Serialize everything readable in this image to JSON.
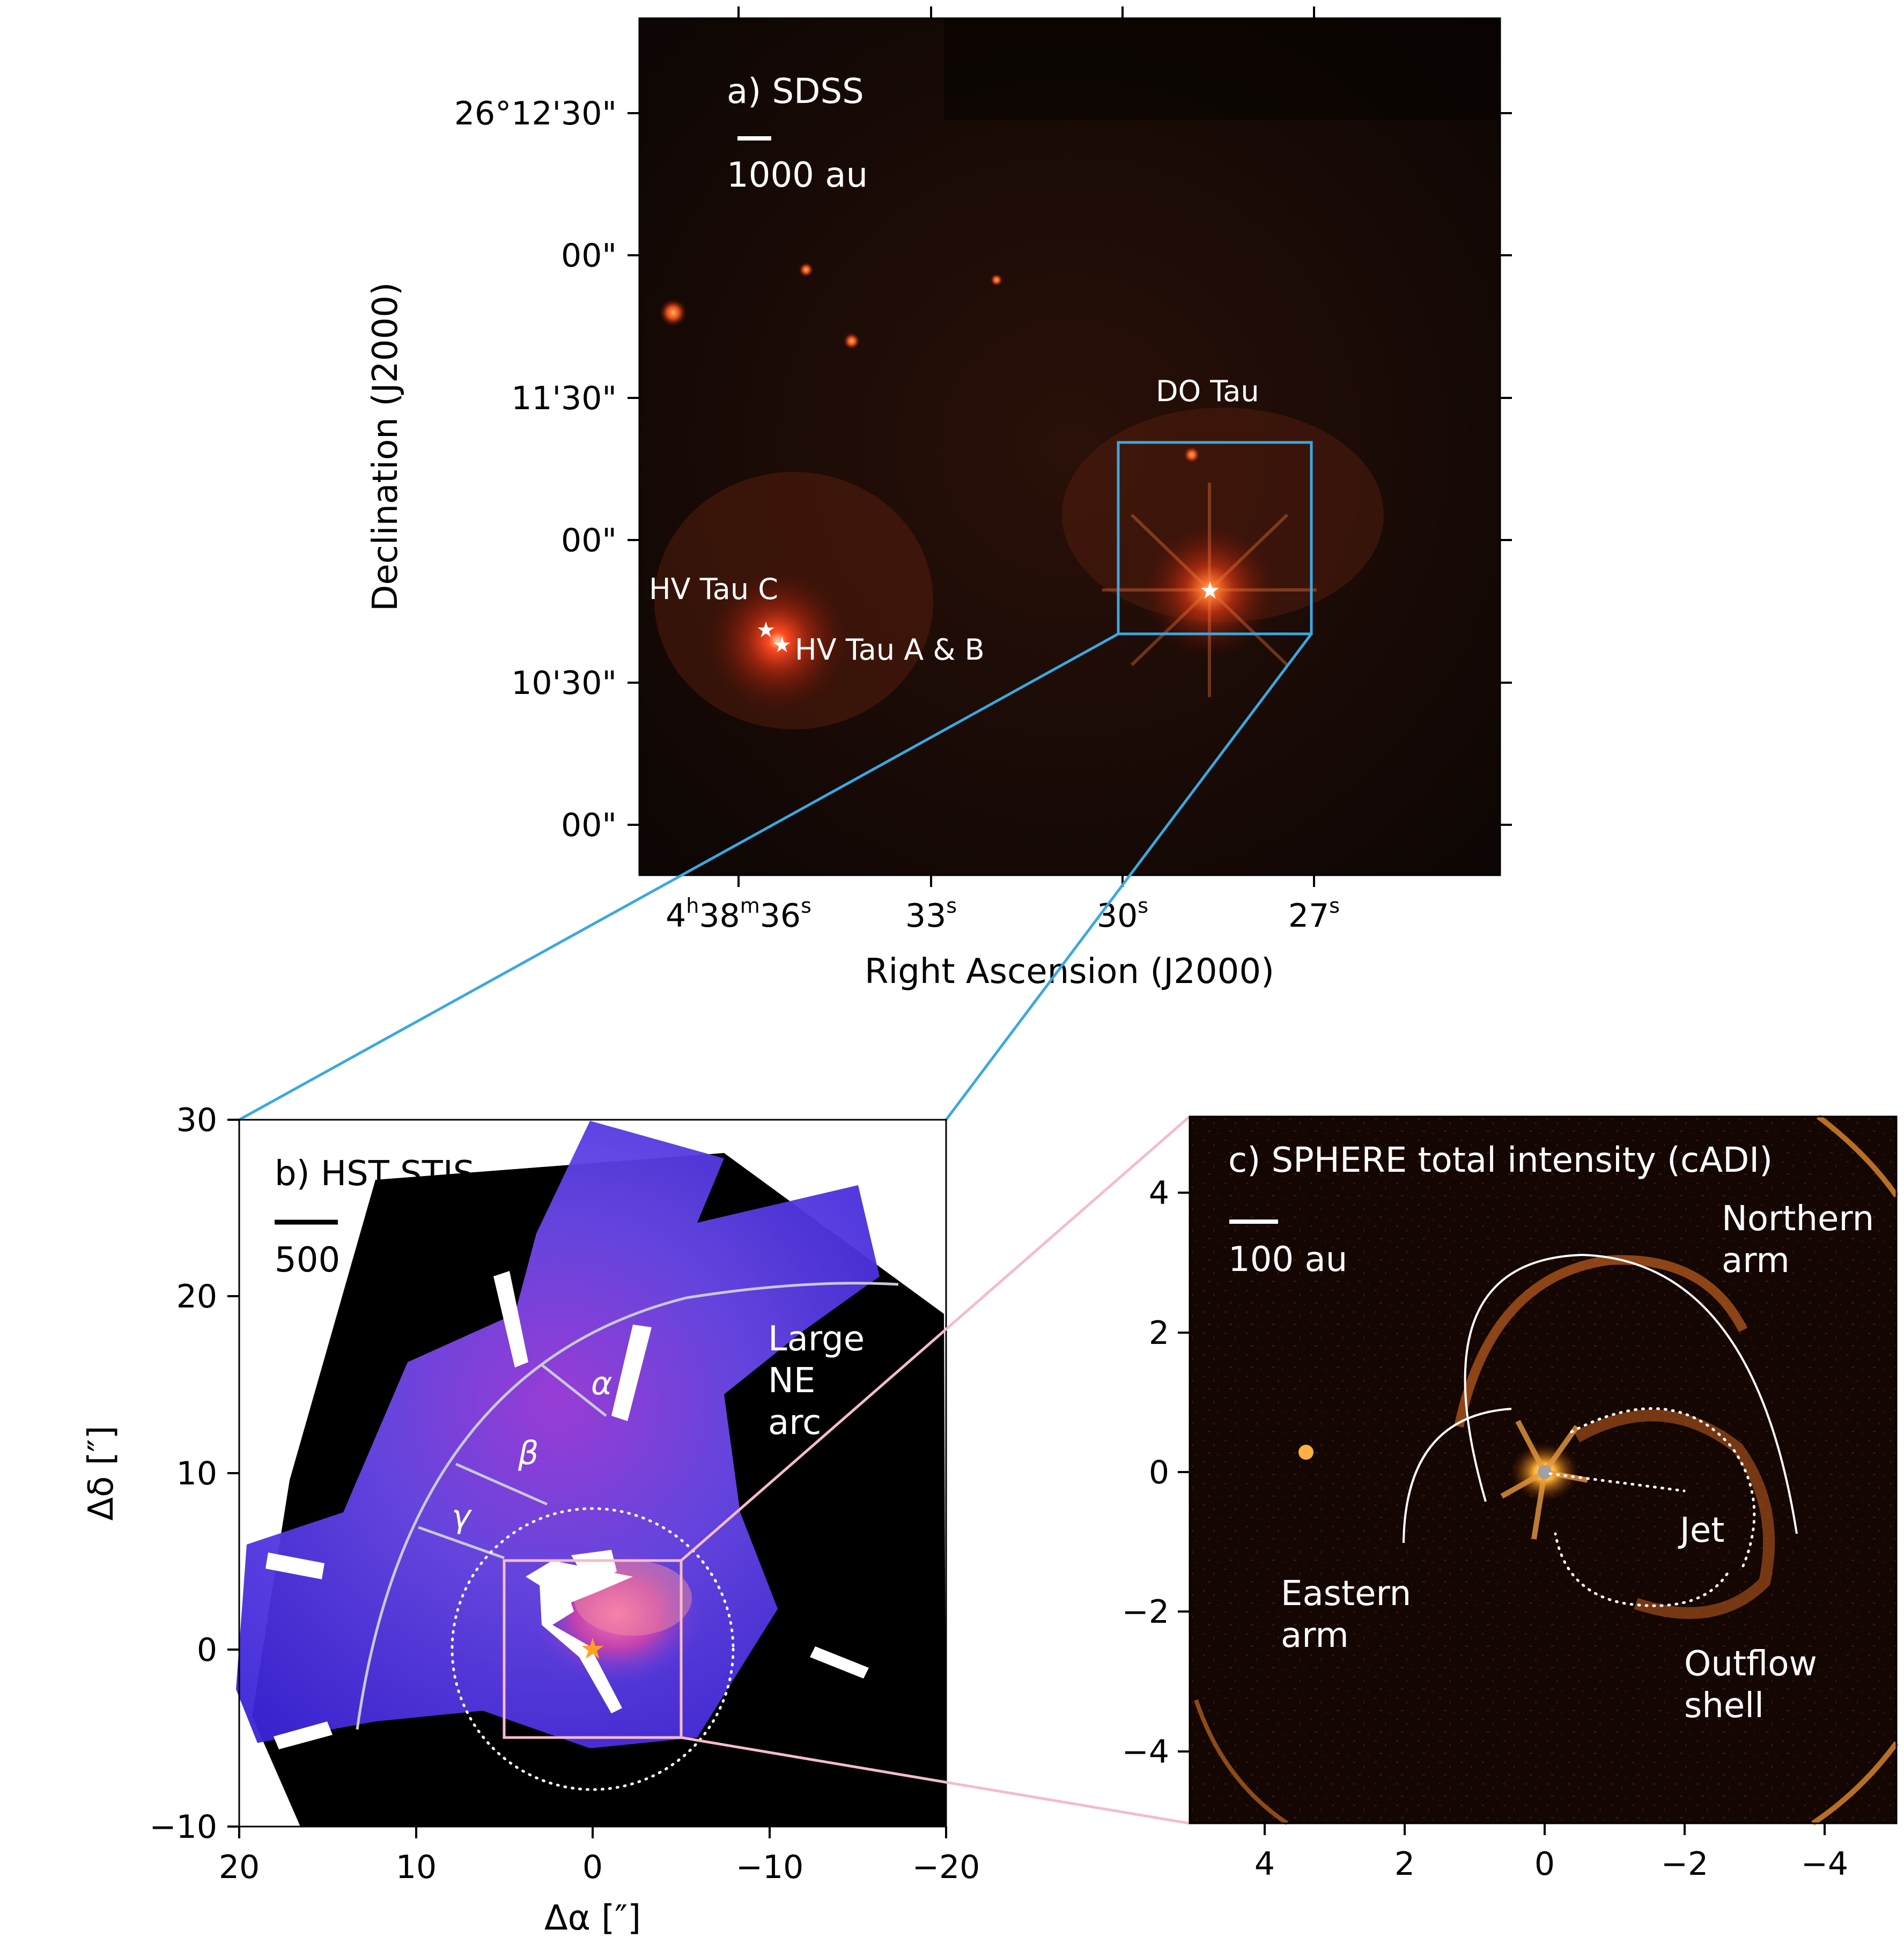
{
  "panel_a": {
    "label": "a) SDSS",
    "scale_label": "1000 au",
    "ylabel": "Declination (J2000)",
    "xlabel": "Right Ascension (J2000)",
    "yticks": [
      "26°12'30\"",
      "00\"",
      "11'30\"",
      "00\"",
      "10'30\"",
      "00\""
    ],
    "xticks": [
      {
        "main": "4",
        "sups": [
          "h",
          "m",
          "s"
        ],
        "parts": [
          "4",
          "38",
          "36"
        ]
      },
      {
        "main": "33",
        "sup": "s"
      },
      {
        "main": "30",
        "sup": "s"
      },
      {
        "main": "27",
        "sup": "s"
      }
    ],
    "annotations": {
      "do_tau": "DO Tau",
      "hv_tau_c": "HV Tau C",
      "hv_tau_ab": "HV Tau A & B"
    }
  },
  "panel_b": {
    "label": "b) HST STIS",
    "scale_label": "500 au",
    "ylabel": "Δδ [″]",
    "xlabel": "Δα [″]",
    "xticks": [
      "20",
      "10",
      "0",
      "−10",
      "−20"
    ],
    "yticks": [
      "30",
      "20",
      "10",
      "0",
      "−10"
    ],
    "xlim": [
      20,
      -20
    ],
    "ylim": [
      -10,
      30
    ],
    "annotations": {
      "large_ne_arc_1": "Large",
      "large_ne_arc_2": "NE",
      "large_ne_arc_3": "arc",
      "alpha": "α",
      "beta": "β",
      "gamma": "γ"
    },
    "colors": {
      "nebula": "#5a3cf0",
      "star": "#ffa020"
    }
  },
  "panel_c": {
    "label": "c) SPHERE total intensity (cADI)",
    "scale_label": "100 au",
    "xticks": [
      "4",
      "2",
      "0",
      "−2",
      "−4"
    ],
    "yticks": [
      "4",
      "2",
      "0",
      "−2",
      "−4"
    ],
    "xlim": [
      5,
      -5
    ],
    "ylim": [
      -5,
      5
    ],
    "annotations": {
      "northern_arm_1": "Northern",
      "northern_arm_2": "arm",
      "eastern_arm_1": "Eastern",
      "eastern_arm_2": "arm",
      "jet": "Jet",
      "outflow_shell_1": "Outflow",
      "outflow_shell_2": "shell"
    }
  },
  "colors": {
    "zoom_a_b": "#3aa8e0",
    "zoom_b_c": "#f4bcc8"
  }
}
